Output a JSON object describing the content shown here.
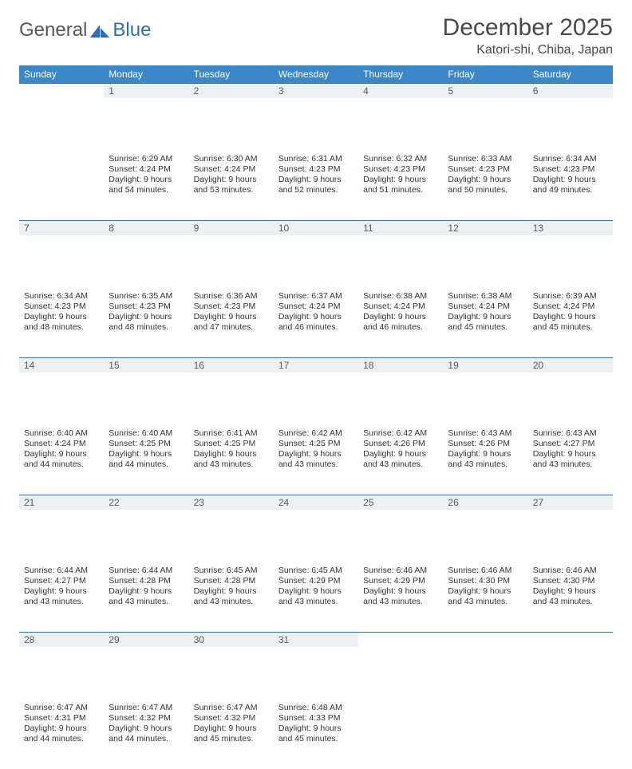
{
  "brand": {
    "part1": "General",
    "part2": "Blue"
  },
  "title": "December 2025",
  "location": "Katori-shi, Chiba, Japan",
  "colors": {
    "header_bg": "#3b87c8",
    "header_text": "#ffffff",
    "daynum_bg": "#eef1f3",
    "rule": "#3b6fa0",
    "brand_blue": "#2f6fb0",
    "text": "#333333"
  },
  "day_headers": [
    "Sunday",
    "Monday",
    "Tuesday",
    "Wednesday",
    "Thursday",
    "Friday",
    "Saturday"
  ],
  "weeks": [
    [
      null,
      {
        "n": "1",
        "sr": "6:29 AM",
        "ss": "4:24 PM",
        "dl": "9 hours and 54 minutes."
      },
      {
        "n": "2",
        "sr": "6:30 AM",
        "ss": "4:24 PM",
        "dl": "9 hours and 53 minutes."
      },
      {
        "n": "3",
        "sr": "6:31 AM",
        "ss": "4:23 PM",
        "dl": "9 hours and 52 minutes."
      },
      {
        "n": "4",
        "sr": "6:32 AM",
        "ss": "4:23 PM",
        "dl": "9 hours and 51 minutes."
      },
      {
        "n": "5",
        "sr": "6:33 AM",
        "ss": "4:23 PM",
        "dl": "9 hours and 50 minutes."
      },
      {
        "n": "6",
        "sr": "6:34 AM",
        "ss": "4:23 PM",
        "dl": "9 hours and 49 minutes."
      }
    ],
    [
      {
        "n": "7",
        "sr": "6:34 AM",
        "ss": "4:23 PM",
        "dl": "9 hours and 48 minutes."
      },
      {
        "n": "8",
        "sr": "6:35 AM",
        "ss": "4:23 PM",
        "dl": "9 hours and 48 minutes."
      },
      {
        "n": "9",
        "sr": "6:36 AM",
        "ss": "4:23 PM",
        "dl": "9 hours and 47 minutes."
      },
      {
        "n": "10",
        "sr": "6:37 AM",
        "ss": "4:24 PM",
        "dl": "9 hours and 46 minutes."
      },
      {
        "n": "11",
        "sr": "6:38 AM",
        "ss": "4:24 PM",
        "dl": "9 hours and 46 minutes."
      },
      {
        "n": "12",
        "sr": "6:38 AM",
        "ss": "4:24 PM",
        "dl": "9 hours and 45 minutes."
      },
      {
        "n": "13",
        "sr": "6:39 AM",
        "ss": "4:24 PM",
        "dl": "9 hours and 45 minutes."
      }
    ],
    [
      {
        "n": "14",
        "sr": "6:40 AM",
        "ss": "4:24 PM",
        "dl": "9 hours and 44 minutes."
      },
      {
        "n": "15",
        "sr": "6:40 AM",
        "ss": "4:25 PM",
        "dl": "9 hours and 44 minutes."
      },
      {
        "n": "16",
        "sr": "6:41 AM",
        "ss": "4:25 PM",
        "dl": "9 hours and 43 minutes."
      },
      {
        "n": "17",
        "sr": "6:42 AM",
        "ss": "4:25 PM",
        "dl": "9 hours and 43 minutes."
      },
      {
        "n": "18",
        "sr": "6:42 AM",
        "ss": "4:26 PM",
        "dl": "9 hours and 43 minutes."
      },
      {
        "n": "19",
        "sr": "6:43 AM",
        "ss": "4:26 PM",
        "dl": "9 hours and 43 minutes."
      },
      {
        "n": "20",
        "sr": "6:43 AM",
        "ss": "4:27 PM",
        "dl": "9 hours and 43 minutes."
      }
    ],
    [
      {
        "n": "21",
        "sr": "6:44 AM",
        "ss": "4:27 PM",
        "dl": "9 hours and 43 minutes."
      },
      {
        "n": "22",
        "sr": "6:44 AM",
        "ss": "4:28 PM",
        "dl": "9 hours and 43 minutes."
      },
      {
        "n": "23",
        "sr": "6:45 AM",
        "ss": "4:28 PM",
        "dl": "9 hours and 43 minutes."
      },
      {
        "n": "24",
        "sr": "6:45 AM",
        "ss": "4:29 PM",
        "dl": "9 hours and 43 minutes."
      },
      {
        "n": "25",
        "sr": "6:46 AM",
        "ss": "4:29 PM",
        "dl": "9 hours and 43 minutes."
      },
      {
        "n": "26",
        "sr": "6:46 AM",
        "ss": "4:30 PM",
        "dl": "9 hours and 43 minutes."
      },
      {
        "n": "27",
        "sr": "6:46 AM",
        "ss": "4:30 PM",
        "dl": "9 hours and 43 minutes."
      }
    ],
    [
      {
        "n": "28",
        "sr": "6:47 AM",
        "ss": "4:31 PM",
        "dl": "9 hours and 44 minutes."
      },
      {
        "n": "29",
        "sr": "6:47 AM",
        "ss": "4:32 PM",
        "dl": "9 hours and 44 minutes."
      },
      {
        "n": "30",
        "sr": "6:47 AM",
        "ss": "4:32 PM",
        "dl": "9 hours and 45 minutes."
      },
      {
        "n": "31",
        "sr": "6:48 AM",
        "ss": "4:33 PM",
        "dl": "9 hours and 45 minutes."
      },
      null,
      null,
      null
    ]
  ],
  "labels": {
    "sunrise": "Sunrise:",
    "sunset": "Sunset:",
    "daylight": "Daylight:"
  }
}
